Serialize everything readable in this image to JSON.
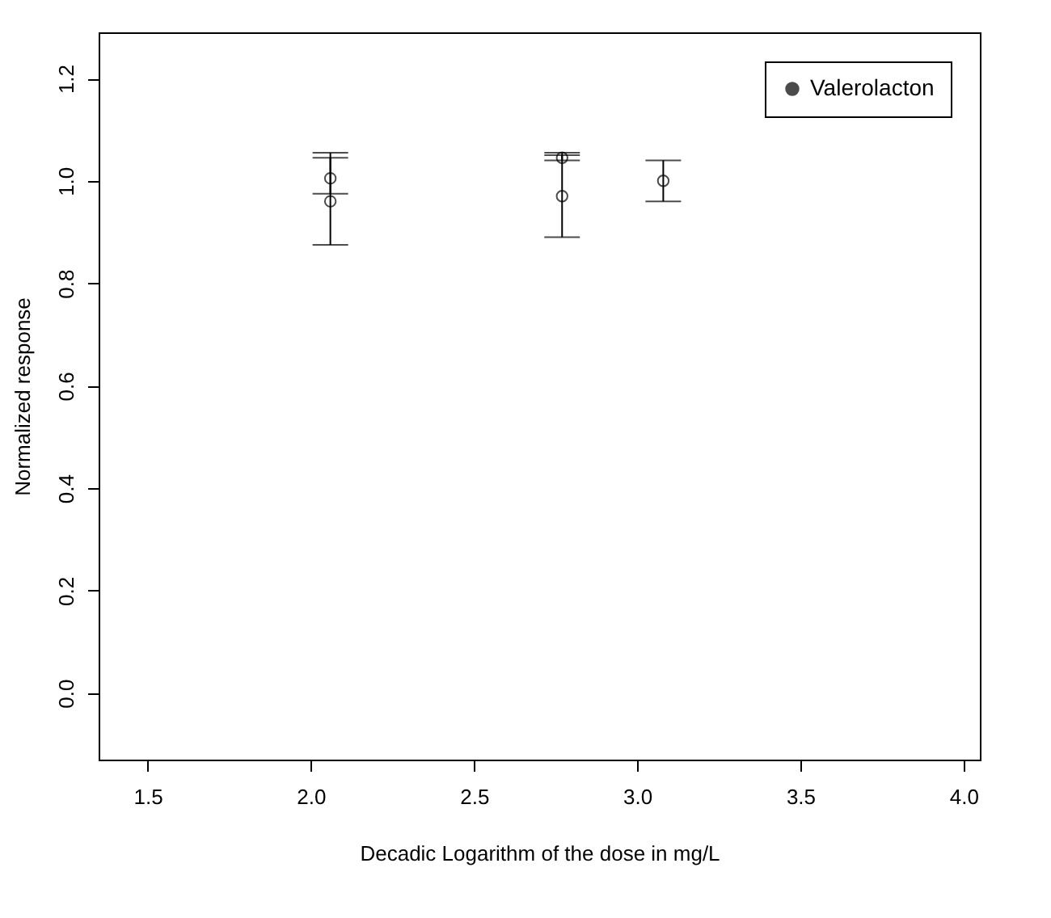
{
  "chart_data": {
    "type": "scatter",
    "xlabel": "Decadic Logarithm of the dose in  mg/L",
    "ylabel": "Normalized response",
    "x": [
      2.06,
      2.06,
      2.77,
      2.77,
      3.08
    ],
    "series": [
      {
        "name": "Valerolacton",
        "color": "#000000",
        "values": [
          1.005,
          0.96,
          1.045,
          0.97,
          1.0
        ],
        "errors": [
          [
            0.975,
            1.045
          ],
          [
            0.875,
            1.055
          ],
          [
            1.04,
            1.055
          ],
          [
            0.89,
            1.05
          ],
          [
            0.96,
            1.04
          ]
        ]
      }
    ],
    "xlim": [
      1.35,
      4.05
    ],
    "xticks": [
      1.5,
      {
        "value": 2,
        "label": "2.0"
      },
      2.5,
      {
        "value": 3,
        "label": "3.0"
      },
      3.5,
      {
        "value": 4,
        "label": "4.0"
      }
    ],
    "ylim": [
      -0.13,
      1.29
    ],
    "yticks": [
      {
        "value": 0,
        "label": "0.0"
      },
      0.2,
      0.4,
      0.6,
      0.8,
      {
        "value": 1,
        "label": "1.0"
      },
      1.2
    ],
    "marker": "circle",
    "grid": false,
    "legend": "top right"
  }
}
